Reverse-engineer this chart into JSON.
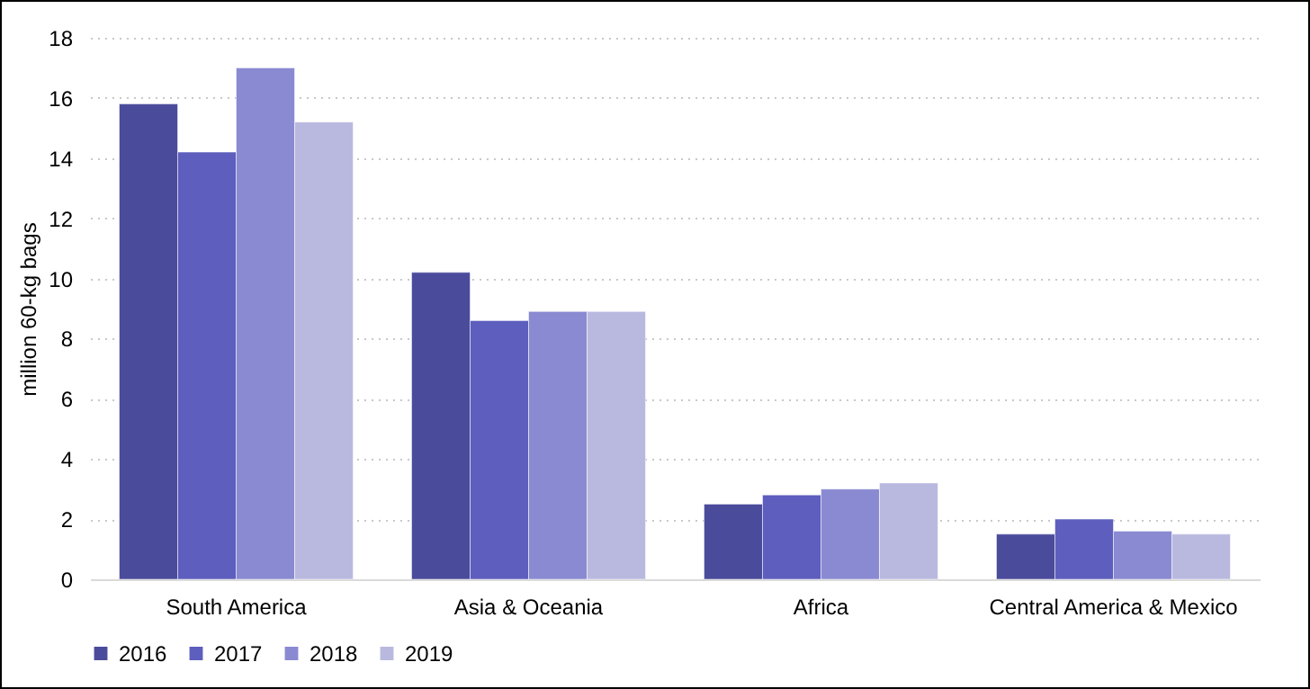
{
  "chart_data": {
    "type": "bar",
    "ylabel": "million 60-kg bags",
    "categories": [
      "South America",
      "Asia & Oceania",
      "Africa",
      "Central America & Mexico"
    ],
    "series": [
      {
        "name": "2016",
        "color": "#4b4b9c",
        "values": [
          15.8,
          10.2,
          2.5,
          1.5
        ]
      },
      {
        "name": "2017",
        "color": "#5d5ebd",
        "values": [
          14.2,
          8.6,
          2.8,
          2.0
        ]
      },
      {
        "name": "2018",
        "color": "#8a8ad2",
        "values": [
          17.0,
          8.9,
          3.0,
          1.6
        ]
      },
      {
        "name": "2019",
        "color": "#b9b9e0",
        "values": [
          15.2,
          8.9,
          3.2,
          1.5
        ]
      }
    ],
    "ylim": [
      0,
      18
    ],
    "yticks": [
      0,
      2,
      4,
      6,
      8,
      10,
      12,
      14,
      16,
      18
    ],
    "grid": "y",
    "legend": "bottom"
  }
}
